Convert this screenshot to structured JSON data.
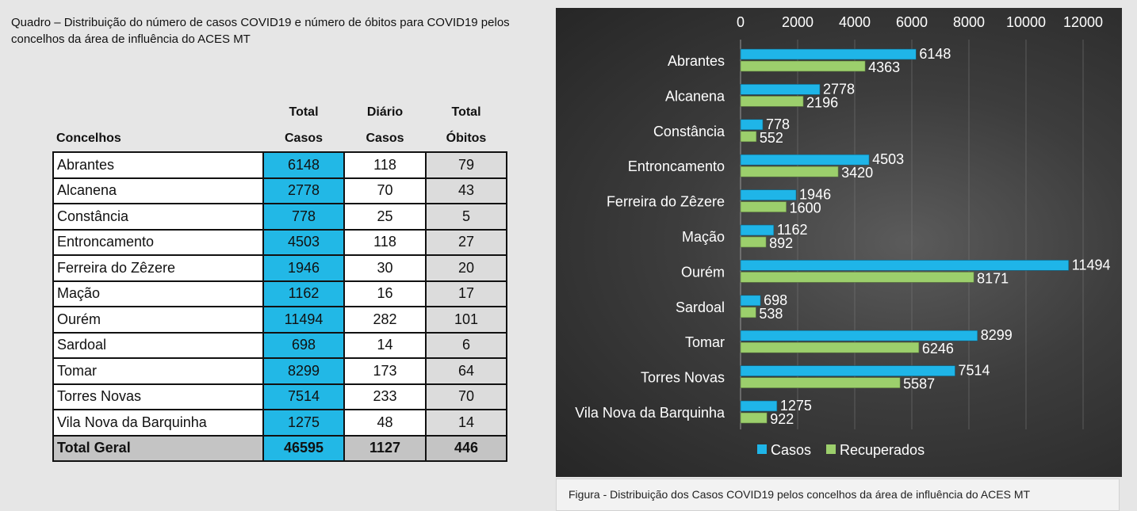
{
  "quadro_title": "Quadro – Distribuição do número de casos COVID19 e número de óbitos para COVID19 pelos concelhos da área de influência do ACES MT",
  "table": {
    "headers": {
      "concelhos": "Concelhos",
      "total_casos_1": "Total",
      "total_casos_2": "Casos",
      "diario_1": "Diário",
      "diario_2": "Casos",
      "obitos_1": "Total",
      "obitos_2": "Óbitos"
    },
    "rows": [
      {
        "concelho": "Abrantes",
        "total_casos": "6148",
        "diario_casos": "118",
        "total_obitos": "79"
      },
      {
        "concelho": "Alcanena",
        "total_casos": "2778",
        "diario_casos": "70",
        "total_obitos": "43"
      },
      {
        "concelho": "Constância",
        "total_casos": "778",
        "diario_casos": "25",
        "total_obitos": "5"
      },
      {
        "concelho": "Entroncamento",
        "total_casos": "4503",
        "diario_casos": "118",
        "total_obitos": "27"
      },
      {
        "concelho": "Ferreira do Zêzere",
        "total_casos": "1946",
        "diario_casos": "30",
        "total_obitos": "20"
      },
      {
        "concelho": "Mação",
        "total_casos": "1162",
        "diario_casos": "16",
        "total_obitos": "17"
      },
      {
        "concelho": "Ourém",
        "total_casos": "11494",
        "diario_casos": "282",
        "total_obitos": "101"
      },
      {
        "concelho": "Sardoal",
        "total_casos": "698",
        "diario_casos": "14",
        "total_obitos": "6"
      },
      {
        "concelho": "Tomar",
        "total_casos": "8299",
        "diario_casos": "173",
        "total_obitos": "64"
      },
      {
        "concelho": "Torres Novas",
        "total_casos": "7514",
        "diario_casos": "233",
        "total_obitos": "70"
      },
      {
        "concelho": "Vila Nova da Barquinha",
        "total_casos": "1275",
        "diario_casos": "48",
        "total_obitos": "14"
      }
    ],
    "total": {
      "concelho": "Total Geral",
      "total_casos": "46595",
      "diario_casos": "1127",
      "total_obitos": "446"
    }
  },
  "colors": {
    "casos": "#1fb5e8",
    "recuperados": "#9ccf6c",
    "table_casos_bg": "#22b8e6"
  },
  "chart_data": {
    "type": "bar",
    "orientation": "horizontal",
    "categories": [
      "Abrantes",
      "Alcanena",
      "Constância",
      "Entroncamento",
      "Ferreira do Zêzere",
      "Mação",
      "Ourém",
      "Sardoal",
      "Tomar",
      "Torres Novas",
      "Vila Nova da Barquinha"
    ],
    "series": [
      {
        "name": "Casos",
        "values": [
          6148,
          2778,
          778,
          4503,
          1946,
          1162,
          11494,
          698,
          8299,
          7514,
          1275
        ]
      },
      {
        "name": "Recuperados",
        "values": [
          4363,
          2196,
          552,
          3420,
          1600,
          892,
          8171,
          538,
          6246,
          5587,
          922
        ]
      }
    ],
    "xlim": [
      0,
      12000
    ],
    "xticks": [
      0,
      2000,
      4000,
      6000,
      8000,
      10000,
      12000
    ],
    "x_axis_position": "top",
    "grid": true,
    "legend": "bottom",
    "data_labels": true
  },
  "caption": "Figura -  Distribuição dos Casos COVID19 pelos concelhos da área de influência do ACES MT"
}
